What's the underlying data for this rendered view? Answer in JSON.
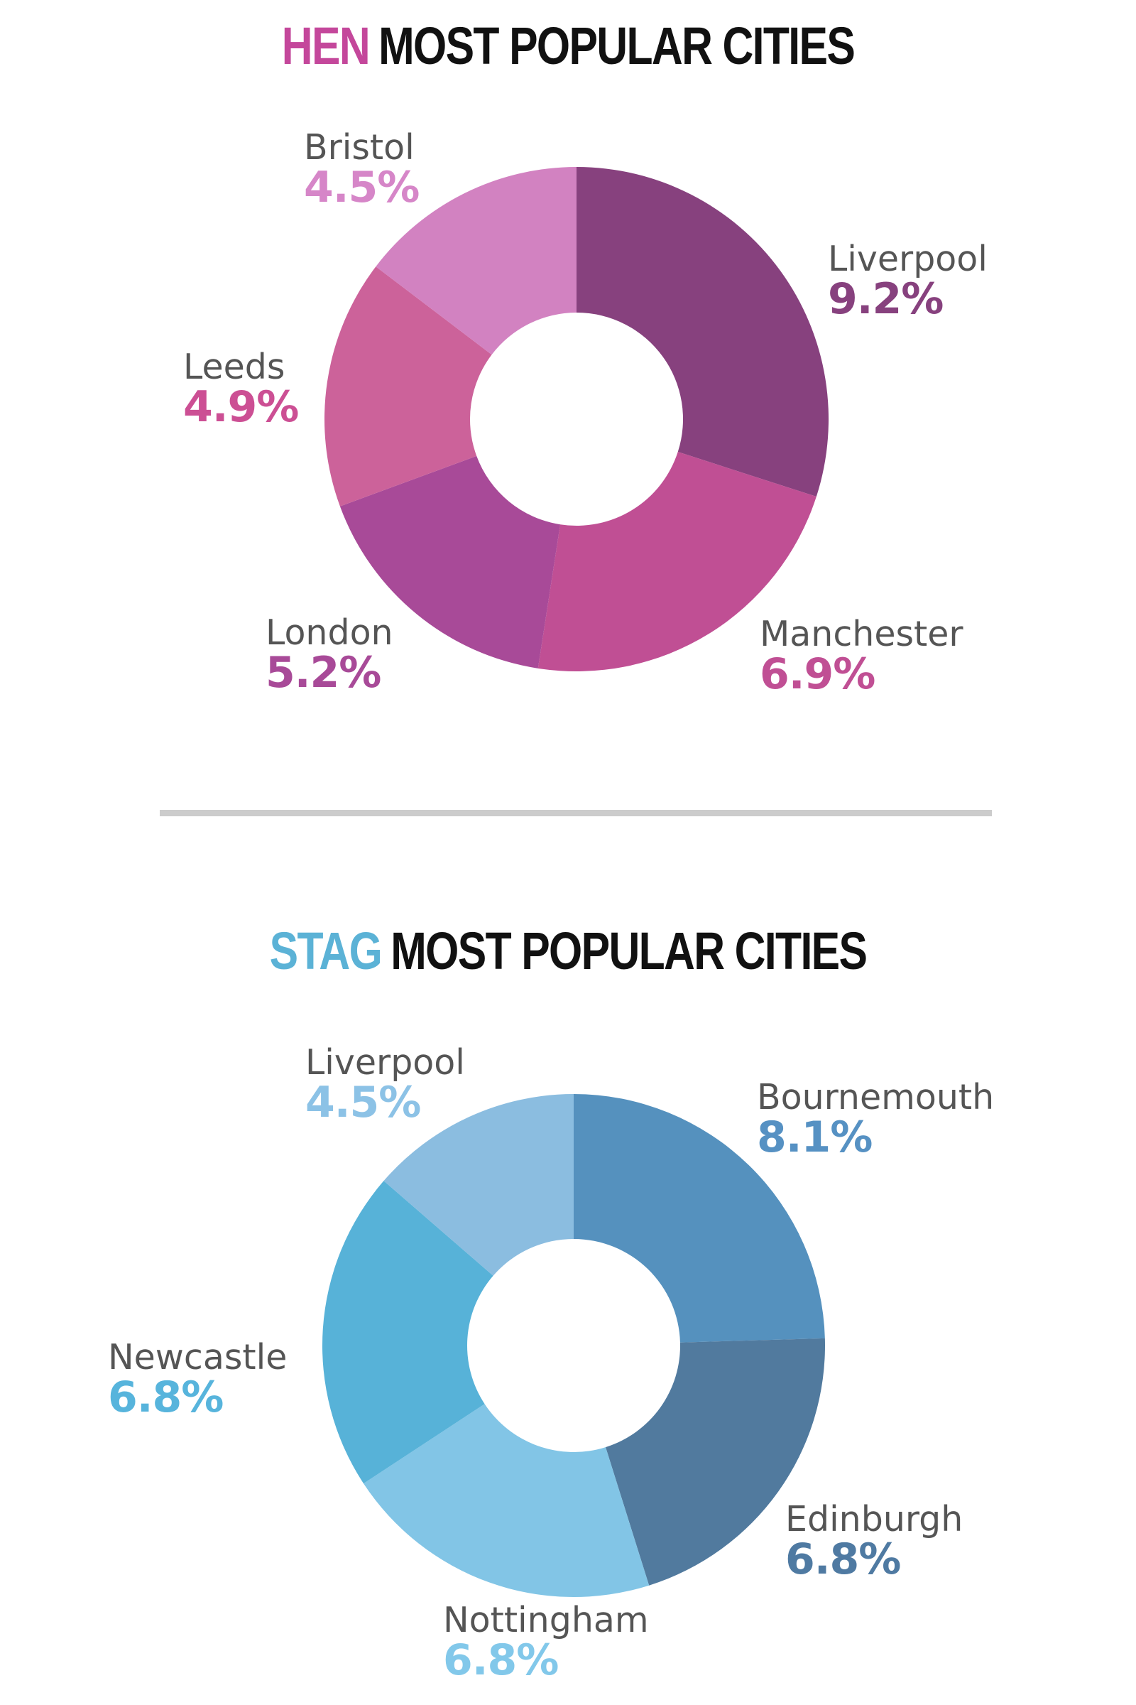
{
  "chart_data": [
    {
      "type": "pie",
      "donut": true,
      "title_accent": "HEN",
      "title_rest": "MOST POPULAR CITIES",
      "accent_color": "#c4479b",
      "unit": "%",
      "slices": [
        {
          "label": "Liverpool",
          "value": 9.2,
          "display": "9.2%",
          "color": "#87417e",
          "text_color": "#87417e"
        },
        {
          "label": "Manchester",
          "value": 6.9,
          "display": "6.9%",
          "color": "#c04f94",
          "text_color": "#c04f94"
        },
        {
          "label": "London",
          "value": 5.2,
          "display": "5.2%",
          "color": "#a84a98",
          "text_color": "#a84a98"
        },
        {
          "label": "Leeds",
          "value": 4.9,
          "display": "4.9%",
          "color": "#cc629a",
          "text_color": "#cc4f94"
        },
        {
          "label": "Bristol",
          "value": 4.5,
          "display": "4.5%",
          "color": "#d282c1",
          "text_color": "#d686c8"
        }
      ]
    },
    {
      "type": "pie",
      "donut": true,
      "title_accent": "STAG",
      "title_rest": "MOST POPULAR CITIES",
      "accent_color": "#5bb2d6",
      "unit": "%",
      "slices": [
        {
          "label": "Bournemouth",
          "value": 8.1,
          "display": "8.1%",
          "color": "#5591be",
          "text_color": "#5691c3"
        },
        {
          "label": "Edinburgh",
          "value": 6.8,
          "display": "6.8%",
          "color": "#517a9e",
          "text_color": "#4f7aa2"
        },
        {
          "label": "Nottingham",
          "value": 6.8,
          "display": "6.8%",
          "color": "#82c5e6",
          "text_color": "#82c8ea"
        },
        {
          "label": "Newcastle",
          "value": 6.8,
          "display": "6.8%",
          "color": "#57b2d8",
          "text_color": "#57b4dc"
        },
        {
          "label": "Liverpool",
          "value": 4.5,
          "display": "4.5%",
          "color": "#8bbde0",
          "text_color": "#8cc2e6"
        }
      ]
    }
  ]
}
